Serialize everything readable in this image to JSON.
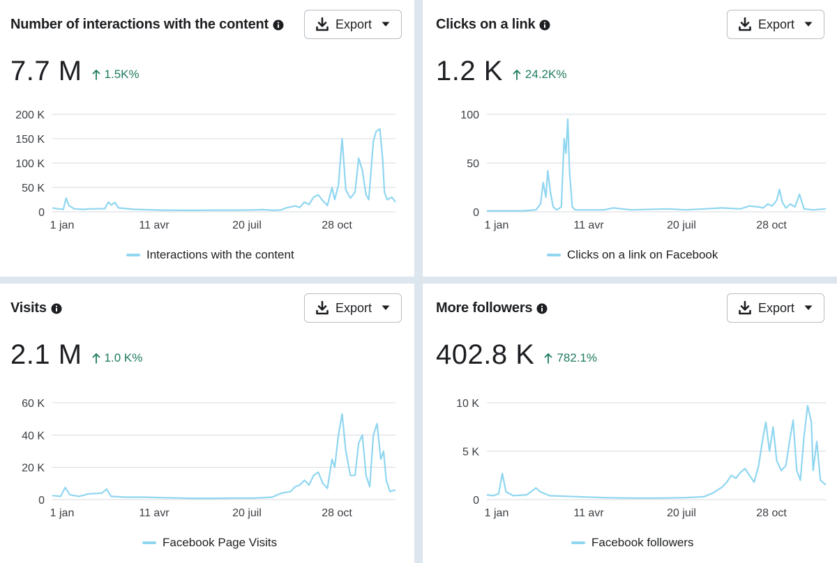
{
  "colors": {
    "series": "#8fd6f0",
    "grid": "#d6d9dd",
    "positive": "#1d7a5f"
  },
  "cards": [
    {
      "title": "Number of interactions with the content",
      "export_label": "Export",
      "value": "7.7 M",
      "change": "1.5K%",
      "legend": "Interactions with the content",
      "chart_data": {
        "type": "line",
        "title": "Number of interactions with the content",
        "x_ticks": [
          "1 jan",
          "11 avr",
          "20 juil",
          "28 oct"
        ],
        "x_tick_days": [
          1,
          101,
          201,
          302
        ],
        "x_range": [
          1,
          365
        ],
        "y_ticks": [
          "0",
          "50 K",
          "100 K",
          "150 K",
          "200 K"
        ],
        "y_tick_values": [
          0,
          50000,
          100000,
          150000,
          200000
        ],
        "ylim": [
          0,
          200000
        ],
        "series": [
          {
            "name": "Interactions with the content",
            "points": [
              [
                1,
                8000
              ],
              [
                8,
                6000
              ],
              [
                13,
                5000
              ],
              [
                16,
                28000
              ],
              [
                19,
                13000
              ],
              [
                25,
                6000
              ],
              [
                35,
                5000
              ],
              [
                42,
                6000
              ],
              [
                58,
                6500
              ],
              [
                62,
                20000
              ],
              [
                65,
                14000
              ],
              [
                69,
                19000
              ],
              [
                73,
                8000
              ],
              [
                90,
                5000
              ],
              [
                100,
                4500
              ],
              [
                120,
                3500
              ],
              [
                150,
                3000
              ],
              [
                180,
                3500
              ],
              [
                200,
                3500
              ],
              [
                220,
                3800
              ],
              [
                230,
                4500
              ],
              [
                242,
                3000
              ],
              [
                250,
                4000
              ],
              [
                255,
                8000
              ],
              [
                265,
                12000
              ],
              [
                270,
                9000
              ],
              [
                275,
                20000
              ],
              [
                280,
                15000
              ],
              [
                285,
                30000
              ],
              [
                290,
                35000
              ],
              [
                294,
                25000
              ],
              [
                300,
                13000
              ],
              [
                305,
                50000
              ],
              [
                308,
                25000
              ],
              [
                312,
                55000
              ],
              [
                316,
                150000
              ],
              [
                320,
                45000
              ],
              [
                325,
                28000
              ],
              [
                330,
                40000
              ],
              [
                334,
                110000
              ],
              [
                338,
                85000
              ],
              [
                342,
                35000
              ],
              [
                345,
                25000
              ],
              [
                350,
                145000
              ],
              [
                353,
                165000
              ],
              [
                357,
                170000
              ],
              [
                360,
                110000
              ],
              [
                362,
                40000
              ],
              [
                365,
                25000
              ],
              [
                370,
                30000
              ],
              [
                374,
                20000
              ]
            ]
          }
        ]
      }
    },
    {
      "title": "Clicks on a link",
      "export_label": "Export",
      "value": "1.2 K",
      "change": "24.2K%",
      "legend": "Clicks on a link on Facebook",
      "chart_data": {
        "type": "line",
        "title": "Clicks on a link",
        "x_ticks": [
          "1 jan",
          "11 avr",
          "20 juil",
          "28 oct"
        ],
        "x_tick_days": [
          1,
          101,
          201,
          302
        ],
        "x_range": [
          1,
          365
        ],
        "y_ticks": [
          "0",
          "50",
          "100"
        ],
        "y_tick_values": [
          0,
          50,
          100
        ],
        "ylim": [
          0,
          100
        ],
        "series": [
          {
            "name": "Clicks on a link on Facebook",
            "points": [
              [
                1,
                1
              ],
              [
                40,
                1
              ],
              [
                55,
                2
              ],
              [
                60,
                8
              ],
              [
                63,
                30
              ],
              [
                66,
                15
              ],
              [
                68,
                42
              ],
              [
                71,
                20
              ],
              [
                74,
                5
              ],
              [
                78,
                2
              ],
              [
                83,
                5
              ],
              [
                86,
                75
              ],
              [
                88,
                60
              ],
              [
                90,
                95
              ],
              [
                92,
                40
              ],
              [
                95,
                5
              ],
              [
                98,
                2
              ],
              [
                130,
                2
              ],
              [
                140,
                4
              ],
              [
                160,
                2
              ],
              [
                200,
                3
              ],
              [
                220,
                2
              ],
              [
                240,
                3
              ],
              [
                260,
                4
              ],
              [
                280,
                3
              ],
              [
                290,
                6
              ],
              [
                300,
                5
              ],
              [
                305,
                4
              ],
              [
                310,
                8
              ],
              [
                315,
                6
              ],
              [
                320,
                12
              ],
              [
                323,
                23
              ],
              [
                326,
                10
              ],
              [
                330,
                4
              ],
              [
                335,
                8
              ],
              [
                340,
                5
              ],
              [
                345,
                18
              ],
              [
                350,
                3
              ],
              [
                360,
                2
              ],
              [
                374,
                3
              ]
            ]
          }
        ]
      }
    },
    {
      "title": "Visits",
      "export_label": "Export",
      "value": "2.1 M",
      "change": "1.0 K%",
      "legend": "Facebook Page Visits",
      "chart_data": {
        "type": "line",
        "title": "Visits",
        "x_ticks": [
          "1 jan",
          "11 avr",
          "20 juil",
          "28 oct"
        ],
        "x_tick_days": [
          1,
          101,
          201,
          302
        ],
        "x_range": [
          1,
          365
        ],
        "y_ticks": [
          "0",
          "20 K",
          "40 K",
          "60 K"
        ],
        "y_tick_values": [
          0,
          20000,
          40000,
          60000
        ],
        "ylim": [
          0,
          60000
        ],
        "series": [
          {
            "name": "Facebook Page Visits",
            "points": [
              [
                1,
                2500
              ],
              [
                10,
                2000
              ],
              [
                15,
                7500
              ],
              [
                20,
                3000
              ],
              [
                30,
                2000
              ],
              [
                40,
                3500
              ],
              [
                55,
                4000
              ],
              [
                60,
                6500
              ],
              [
                65,
                2000
              ],
              [
                80,
                1500
              ],
              [
                100,
                1500
              ],
              [
                120,
                1200
              ],
              [
                150,
                800
              ],
              [
                180,
                800
              ],
              [
                200,
                900
              ],
              [
                220,
                900
              ],
              [
                240,
                1500
              ],
              [
                250,
                4000
              ],
              [
                260,
                5000
              ],
              [
                265,
                8000
              ],
              [
                270,
                9000
              ],
              [
                275,
                12000
              ],
              [
                280,
                9000
              ],
              [
                285,
                15000
              ],
              [
                290,
                17000
              ],
              [
                295,
                10000
              ],
              [
                300,
                7000
              ],
              [
                305,
                25000
              ],
              [
                308,
                20000
              ],
              [
                312,
                40000
              ],
              [
                316,
                53000
              ],
              [
                320,
                30000
              ],
              [
                325,
                15000
              ],
              [
                330,
                15000
              ],
              [
                334,
                35000
              ],
              [
                338,
                40000
              ],
              [
                342,
                15000
              ],
              [
                346,
                8000
              ],
              [
                350,
                40000
              ],
              [
                354,
                47000
              ],
              [
                358,
                25000
              ],
              [
                361,
                30000
              ],
              [
                364,
                12000
              ],
              [
                368,
                5000
              ],
              [
                374,
                6000
              ]
            ]
          }
        ]
      }
    },
    {
      "title": "More followers",
      "export_label": "Export",
      "value": "402.8 K",
      "change": "782.1%",
      "legend": "Facebook followers",
      "chart_data": {
        "type": "line",
        "title": "More followers",
        "x_ticks": [
          "1 jan",
          "11 avr",
          "20 juil",
          "28 oct"
        ],
        "x_tick_days": [
          1,
          101,
          201,
          302
        ],
        "x_range": [
          1,
          365
        ],
        "y_ticks": [
          "0",
          "5 K",
          "10 K"
        ],
        "y_tick_values": [
          0,
          5000,
          10000
        ],
        "ylim": [
          0,
          10000
        ],
        "series": [
          {
            "name": "Facebook followers",
            "points": [
              [
                1,
                500
              ],
              [
                8,
                400
              ],
              [
                14,
                600
              ],
              [
                18,
                2700
              ],
              [
                22,
                800
              ],
              [
                30,
                400
              ],
              [
                45,
                500
              ],
              [
                55,
                1200
              ],
              [
                60,
                800
              ],
              [
                70,
                400
              ],
              [
                100,
                300
              ],
              [
                130,
                200
              ],
              [
                160,
                150
              ],
              [
                190,
                150
              ],
              [
                220,
                200
              ],
              [
                240,
                300
              ],
              [
                250,
                700
              ],
              [
                260,
                1300
              ],
              [
                265,
                1800
              ],
              [
                270,
                2500
              ],
              [
                275,
                2200
              ],
              [
                280,
                2800
              ],
              [
                285,
                3200
              ],
              [
                290,
                2500
              ],
              [
                295,
                1800
              ],
              [
                300,
                3500
              ],
              [
                305,
                6500
              ],
              [
                308,
                8000
              ],
              [
                312,
                5000
              ],
              [
                316,
                7500
              ],
              [
                320,
                4000
              ],
              [
                325,
                3000
              ],
              [
                330,
                3500
              ],
              [
                334,
                6000
              ],
              [
                338,
                8200
              ],
              [
                342,
                3000
              ],
              [
                346,
                2000
              ],
              [
                350,
                6500
              ],
              [
                354,
                9700
              ],
              [
                358,
                8000
              ],
              [
                360,
                3000
              ],
              [
                364,
                6000
              ],
              [
                368,
                2000
              ],
              [
                374,
                1500
              ]
            ]
          }
        ]
      }
    }
  ]
}
